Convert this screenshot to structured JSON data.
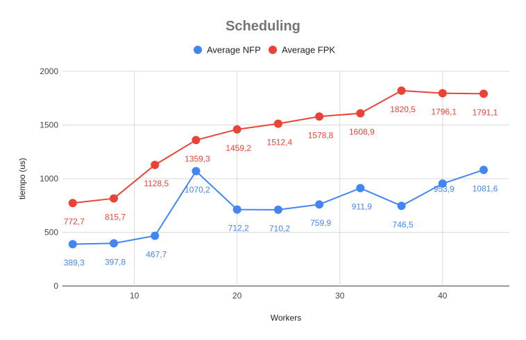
{
  "chart_data": {
    "type": "line",
    "title": "Scheduling",
    "xlabel": "Workers",
    "ylabel": "tiempo (us)",
    "x": [
      4,
      8,
      12,
      16,
      20,
      24,
      28,
      32,
      36,
      40,
      44
    ],
    "xlim": [
      3,
      46.5
    ],
    "ylim": [
      0,
      2000
    ],
    "x_ticks": [
      10,
      20,
      30,
      40
    ],
    "y_ticks": [
      0,
      500,
      1000,
      1500,
      2000
    ],
    "x_tick_labels": [
      "10",
      "20",
      "30",
      "40"
    ],
    "y_tick_labels": [
      "0",
      "500",
      "1000",
      "1500",
      "2000"
    ],
    "grid": true,
    "legend_position": "top-center",
    "series": [
      {
        "name": "Average NFP",
        "color": "#4285f4",
        "values": [
          389.3,
          397.8,
          467.7,
          1070.2,
          712.2,
          710.2,
          759.9,
          911.9,
          746.5,
          953.9,
          1081.6
        ],
        "labels": [
          "389,3",
          "397,8",
          "467,7",
          "1070,2",
          "712,2",
          "710,2",
          "759,9",
          "911,9",
          "746,5",
          "953,9",
          "1081,6"
        ],
        "label_position": [
          "below",
          "below",
          "below",
          "below",
          "below",
          "below",
          "below",
          "below",
          "below",
          "above",
          "below"
        ]
      },
      {
        "name": "Average FPK",
        "color": "#ea4335",
        "values": [
          772.7,
          815.7,
          1128.5,
          1359.3,
          1459.2,
          1512.4,
          1578.8,
          1608.9,
          1820.5,
          1796.1,
          1791.1
        ],
        "labels": [
          "772,7",
          "815,7",
          "1128,5",
          "1359,3",
          "1459,2",
          "1512,4",
          "1578,8",
          "1608,9",
          "1820,5",
          "1796,1",
          "1791,1"
        ],
        "label_position": [
          "below",
          "below",
          "below",
          "below",
          "below",
          "below",
          "below",
          "below",
          "below",
          "below",
          "below"
        ]
      }
    ]
  }
}
